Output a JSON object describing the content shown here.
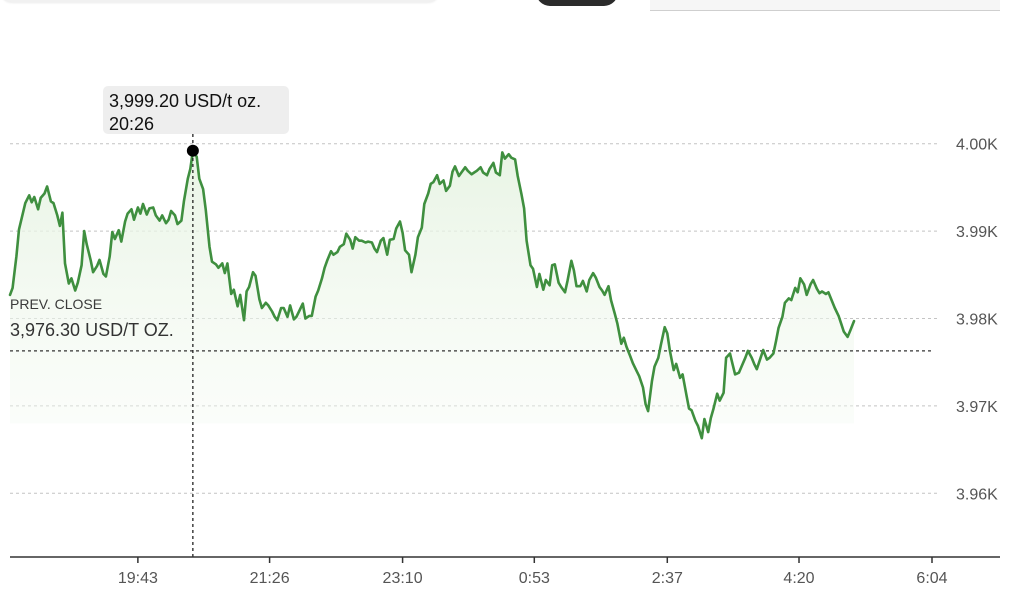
{
  "chart_data": {
    "type": "line",
    "y_unit": "USD/t oz.",
    "ylim": [
      3955,
      4005
    ],
    "yticks": [
      {
        "value": 4000,
        "label": "4.00K"
      },
      {
        "value": 3990,
        "label": "3.99K"
      },
      {
        "value": 3980,
        "label": "3.98K"
      },
      {
        "value": 3970,
        "label": "3.97K"
      },
      {
        "value": 3960,
        "label": "3.96K"
      }
    ],
    "xticks": [
      {
        "minute": 1183,
        "label": "19:43"
      },
      {
        "minute": 1286,
        "label": "21:26"
      },
      {
        "minute": 1390,
        "label": "23:10"
      },
      {
        "minute": 1493,
        "label": "0:53"
      },
      {
        "minute": 1597,
        "label": "2:37"
      },
      {
        "minute": 1700,
        "label": "4:20"
      },
      {
        "minute": 1804,
        "label": "6:04"
      }
    ],
    "prev_close": {
      "label": "PREV. CLOSE",
      "value": 3976.3,
      "display": "3,976.30 USD/T OZ."
    },
    "tooltip": {
      "value_text": "3,999.20 USD/t oz.",
      "time_text": "20:26",
      "minute": 1226,
      "value": 3999.2
    },
    "grid": true,
    "line_color": "#3f8f3f",
    "fill_color": "#e9f5e6",
    "series": [
      {
        "values": [
          [
            1083,
            3982.7
          ],
          [
            1085,
            3983.5
          ],
          [
            1088,
            3987.1
          ],
          [
            1090,
            3990.2
          ],
          [
            1093,
            3992.0
          ],
          [
            1095,
            3993.2
          ],
          [
            1098,
            3994.1
          ],
          [
            1100,
            3993.3
          ],
          [
            1102,
            3993.9
          ],
          [
            1105,
            3992.5
          ],
          [
            1107,
            3993.8
          ],
          [
            1110,
            3994.3
          ],
          [
            1112,
            3995.1
          ],
          [
            1115,
            3993.4
          ],
          [
            1117,
            3993.2
          ],
          [
            1120,
            3991.8
          ],
          [
            1122,
            3990.6
          ],
          [
            1124,
            3992.1
          ],
          [
            1126,
            3986.3
          ],
          [
            1129,
            3984.0
          ],
          [
            1131,
            3984.6
          ],
          [
            1134,
            3983.2
          ],
          [
            1136,
            3984.1
          ],
          [
            1139,
            3986.1
          ],
          [
            1141,
            3990.0
          ],
          [
            1143,
            3988.5
          ],
          [
            1146,
            3986.7
          ],
          [
            1148,
            3985.3
          ],
          [
            1151,
            3986.0
          ],
          [
            1153,
            3986.7
          ],
          [
            1156,
            3985.1
          ],
          [
            1158,
            3984.8
          ],
          [
            1161,
            3987.1
          ],
          [
            1163,
            3989.9
          ],
          [
            1165,
            3989.1
          ],
          [
            1168,
            3990.1
          ],
          [
            1170,
            3988.8
          ],
          [
            1173,
            3991.1
          ],
          [
            1175,
            3992.0
          ],
          [
            1178,
            3992.5
          ],
          [
            1180,
            3991.3
          ],
          [
            1183,
            3992.7
          ],
          [
            1185,
            3992.0
          ],
          [
            1187,
            3993.1
          ],
          [
            1190,
            3991.9
          ],
          [
            1192,
            3992.6
          ],
          [
            1195,
            3992.7
          ],
          [
            1197,
            3991.8
          ],
          [
            1200,
            3991.2
          ],
          [
            1202,
            3991.8
          ],
          [
            1205,
            3990.9
          ],
          [
            1207,
            3991.3
          ],
          [
            1209,
            3992.3
          ],
          [
            1212,
            3991.8
          ],
          [
            1214,
            3990.8
          ],
          [
            1217,
            3991.2
          ],
          [
            1219,
            3993.4
          ],
          [
            1222,
            3996.0
          ],
          [
            1224,
            3997.1
          ],
          [
            1226,
            3999.2
          ],
          [
            1229,
            3998.5
          ],
          [
            1231,
            3996.0
          ],
          [
            1234,
            3994.8
          ],
          [
            1236,
            3992.5
          ],
          [
            1239,
            3988.2
          ],
          [
            1241,
            3986.5
          ],
          [
            1244,
            3986.2
          ],
          [
            1246,
            3985.8
          ],
          [
            1249,
            3986.3
          ],
          [
            1251,
            3985.2
          ],
          [
            1253,
            3986.3
          ],
          [
            1256,
            3982.8
          ],
          [
            1258,
            3983.3
          ],
          [
            1261,
            3981.4
          ],
          [
            1263,
            3982.7
          ],
          [
            1266,
            3979.8
          ],
          [
            1268,
            3983.1
          ],
          [
            1270,
            3983.6
          ],
          [
            1273,
            3985.3
          ],
          [
            1275,
            3984.9
          ],
          [
            1278,
            3982.2
          ],
          [
            1280,
            3981.2
          ],
          [
            1283,
            3981.8
          ],
          [
            1285,
            3981.5
          ],
          [
            1288,
            3980.8
          ],
          [
            1290,
            3980.2
          ],
          [
            1292,
            3979.8
          ],
          [
            1295,
            3981.2
          ],
          [
            1297,
            3981.2
          ],
          [
            1300,
            3980.2
          ],
          [
            1302,
            3981.5
          ],
          [
            1305,
            3979.9
          ],
          [
            1307,
            3980.2
          ],
          [
            1309,
            3980.8
          ],
          [
            1312,
            3981.7
          ],
          [
            1314,
            3980.0
          ],
          [
            1317,
            3980.3
          ],
          [
            1319,
            3980.3
          ],
          [
            1322,
            3982.5
          ],
          [
            1324,
            3983.2
          ],
          [
            1327,
            3984.6
          ],
          [
            1329,
            3985.8
          ],
          [
            1331,
            3986.6
          ],
          [
            1334,
            3987.7
          ],
          [
            1336,
            3987.3
          ],
          [
            1339,
            3987.6
          ],
          [
            1341,
            3988.2
          ],
          [
            1344,
            3988.5
          ],
          [
            1346,
            3989.7
          ],
          [
            1349,
            3989.0
          ],
          [
            1351,
            3988.0
          ],
          [
            1353,
            3989.3
          ],
          [
            1356,
            3988.9
          ],
          [
            1358,
            3988.9
          ],
          [
            1361,
            3988.7
          ],
          [
            1363,
            3988.8
          ],
          [
            1366,
            3988.7
          ],
          [
            1368,
            3988.0
          ],
          [
            1370,
            3987.6
          ],
          [
            1373,
            3988.9
          ],
          [
            1375,
            3989.2
          ],
          [
            1378,
            3987.3
          ],
          [
            1380,
            3989.0
          ],
          [
            1383,
            3989.1
          ],
          [
            1385,
            3990.3
          ],
          [
            1388,
            3991.1
          ],
          [
            1390,
            3989.8
          ],
          [
            1392,
            3987.8
          ],
          [
            1395,
            3987.3
          ],
          [
            1397,
            3985.3
          ],
          [
            1400,
            3987.3
          ],
          [
            1402,
            3989.3
          ],
          [
            1405,
            3990.4
          ],
          [
            1407,
            3993.1
          ],
          [
            1410,
            3994.3
          ],
          [
            1412,
            3995.4
          ],
          [
            1414,
            3995.6
          ],
          [
            1417,
            3996.4
          ],
          [
            1419,
            3995.4
          ],
          [
            1422,
            3995.8
          ],
          [
            1424,
            3994.6
          ],
          [
            1427,
            3995.2
          ],
          [
            1429,
            3996.8
          ],
          [
            1431,
            3997.4
          ],
          [
            1434,
            3996.3
          ],
          [
            1436,
            3996.7
          ],
          [
            1439,
            3997.3
          ],
          [
            1441,
            3996.9
          ],
          [
            1444,
            3996.5
          ],
          [
            1446,
            3996.7
          ],
          [
            1448,
            3996.9
          ],
          [
            1451,
            3997.3
          ],
          [
            1453,
            3996.7
          ],
          [
            1456,
            3996.4
          ],
          [
            1458,
            3997.1
          ],
          [
            1461,
            3997.8
          ],
          [
            1463,
            3996.7
          ],
          [
            1466,
            3996.4
          ],
          [
            1468,
            3999.0
          ],
          [
            1470,
            3998.3
          ],
          [
            1473,
            3998.8
          ],
          [
            1475,
            3998.4
          ],
          [
            1478,
            3998.2
          ],
          [
            1480,
            3996.3
          ],
          [
            1483,
            3994.2
          ],
          [
            1485,
            3992.6
          ],
          [
            1487,
            3988.9
          ],
          [
            1490,
            3986.1
          ],
          [
            1492,
            3985.7
          ],
          [
            1495,
            3983.6
          ],
          [
            1497,
            3985.1
          ],
          [
            1500,
            3983.3
          ],
          [
            1502,
            3984.4
          ],
          [
            1505,
            3983.8
          ],
          [
            1507,
            3986.1
          ],
          [
            1509,
            3986.2
          ],
          [
            1512,
            3984.1
          ],
          [
            1514,
            3983.6
          ],
          [
            1517,
            3983.0
          ],
          [
            1519,
            3984.3
          ],
          [
            1522,
            3986.6
          ],
          [
            1524,
            3985.5
          ],
          [
            1526,
            3983.7
          ],
          [
            1529,
            3983.7
          ],
          [
            1531,
            3984.3
          ],
          [
            1534,
            3983.1
          ],
          [
            1536,
            3984.4
          ],
          [
            1539,
            3985.2
          ],
          [
            1541,
            3984.7
          ],
          [
            1544,
            3983.6
          ],
          [
            1546,
            3983.2
          ],
          [
            1548,
            3982.7
          ],
          [
            1551,
            3983.7
          ],
          [
            1553,
            3982.1
          ],
          [
            1556,
            3980.5
          ],
          [
            1558,
            3979.4
          ],
          [
            1561,
            3977.1
          ],
          [
            1563,
            3977.8
          ],
          [
            1565,
            3976.8
          ],
          [
            1568,
            3975.7
          ],
          [
            1570,
            3974.9
          ],
          [
            1573,
            3974.0
          ],
          [
            1575,
            3973.4
          ],
          [
            1578,
            3972.1
          ],
          [
            1580,
            3970.2
          ],
          [
            1582,
            3969.4
          ],
          [
            1585,
            3972.8
          ],
          [
            1587,
            3974.5
          ],
          [
            1590,
            3975.5
          ],
          [
            1592,
            3977.0
          ],
          [
            1595,
            3979.0
          ],
          [
            1597,
            3978.3
          ],
          [
            1599,
            3976.3
          ],
          [
            1602,
            3974.1
          ],
          [
            1604,
            3974.8
          ],
          [
            1607,
            3973.2
          ],
          [
            1609,
            3973.6
          ],
          [
            1612,
            3971.2
          ],
          [
            1614,
            3969.7
          ],
          [
            1616,
            3969.5
          ],
          [
            1619,
            3968.3
          ],
          [
            1621,
            3967.7
          ],
          [
            1624,
            3966.3
          ],
          [
            1626,
            3968.5
          ],
          [
            1629,
            3967.0
          ],
          [
            1631,
            3968.6
          ],
          [
            1633,
            3969.6
          ],
          [
            1636,
            3971.4
          ],
          [
            1638,
            3970.6
          ],
          [
            1641,
            3971.5
          ],
          [
            1643,
            3975.5
          ],
          [
            1646,
            3976.0
          ],
          [
            1648,
            3974.8
          ],
          [
            1650,
            3973.6
          ],
          [
            1653,
            3973.8
          ],
          [
            1655,
            3974.5
          ],
          [
            1658,
            3975.5
          ],
          [
            1660,
            3976.3
          ],
          [
            1663,
            3975.5
          ],
          [
            1665,
            3974.8
          ],
          [
            1667,
            3974.2
          ],
          [
            1670,
            3975.5
          ],
          [
            1672,
            3976.4
          ],
          [
            1675,
            3975.3
          ],
          [
            1677,
            3975.5
          ],
          [
            1680,
            3976.0
          ],
          [
            1682,
            3977.4
          ],
          [
            1684,
            3978.9
          ],
          [
            1687,
            3980.2
          ],
          [
            1689,
            3981.8
          ],
          [
            1692,
            3982.3
          ],
          [
            1694,
            3982.1
          ],
          [
            1697,
            3983.5
          ],
          [
            1699,
            3983.0
          ],
          [
            1701,
            3984.6
          ],
          [
            1704,
            3983.9
          ],
          [
            1706,
            3982.7
          ],
          [
            1709,
            3983.9
          ],
          [
            1711,
            3984.4
          ],
          [
            1714,
            3983.4
          ],
          [
            1716,
            3982.9
          ],
          [
            1718,
            3983.1
          ],
          [
            1721,
            3982.8
          ],
          [
            1723,
            3983.0
          ],
          [
            1726,
            3981.9
          ],
          [
            1728,
            3981.2
          ],
          [
            1731,
            3980.3
          ],
          [
            1733,
            3979.4
          ],
          [
            1735,
            3978.5
          ],
          [
            1738,
            3977.9
          ],
          [
            1740,
            3978.6
          ],
          [
            1743,
            3979.7
          ]
        ]
      }
    ]
  }
}
